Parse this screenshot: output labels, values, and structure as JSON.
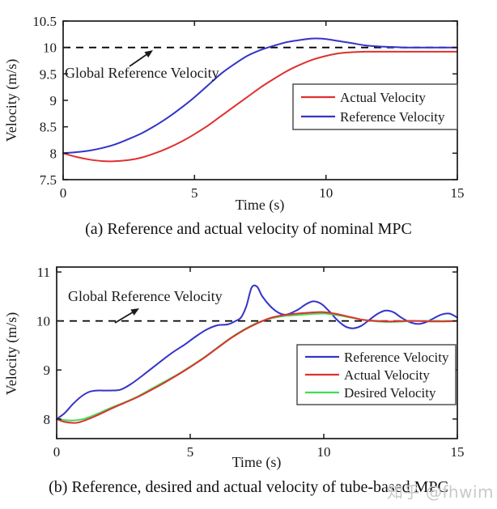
{
  "figure": {
    "watermark": "知乎 @fhwim"
  },
  "colors": {
    "actual": "#e03030",
    "reference": "#3434c8",
    "desired": "#3fdd55",
    "axis": "#1a1a1a",
    "dashed_reference": "#000000",
    "watermark": "#c9c9c9"
  },
  "chart_data": [
    {
      "type": "line",
      "caption": "(a) Reference and actual velocity of nominal MPC",
      "xlabel": "Time (s)",
      "ylabel": "Velocity (m/s)",
      "xlim": [
        0,
        15
      ],
      "ylim": [
        7.5,
        10.5
      ],
      "xticks": [
        0,
        5,
        10,
        15
      ],
      "xtick_labels": [
        "0",
        "5",
        "10",
        "15"
      ],
      "yticks": [
        7.5,
        8,
        8.5,
        9,
        9.5,
        10,
        10.5
      ],
      "ytick_labels": [
        "7.5",
        "8",
        "8.5",
        "9",
        "9.5",
        "10",
        "10.5"
      ],
      "grid": false,
      "reference_line_y": 10,
      "annotation": {
        "text": "Global Reference Velocity"
      },
      "legend_position": "middle-right",
      "legend": [
        {
          "label": "Actual Velocity",
          "color": "#e03030"
        },
        {
          "label": "Reference Velocity",
          "color": "#3434c8"
        }
      ],
      "series": [
        {
          "name": "Actual Velocity",
          "color": "#e03030",
          "x": [
            0,
            0.5,
            1,
            1.5,
            2,
            2.5,
            3,
            3.5,
            4,
            4.5,
            5,
            5.5,
            6,
            6.5,
            7,
            7.5,
            8,
            8.5,
            9,
            9.5,
            10,
            10.5,
            11,
            11.5,
            12,
            12.5,
            13,
            14,
            15
          ],
          "y": [
            8.0,
            7.93,
            7.88,
            7.85,
            7.85,
            7.87,
            7.92,
            8.0,
            8.1,
            8.22,
            8.36,
            8.52,
            8.7,
            8.88,
            9.06,
            9.24,
            9.4,
            9.55,
            9.67,
            9.77,
            9.84,
            9.89,
            9.91,
            9.92,
            9.92,
            9.92,
            9.92,
            9.92,
            9.92
          ]
        },
        {
          "name": "Reference Velocity",
          "color": "#3434c8",
          "x": [
            0,
            0.5,
            1,
            1.5,
            2,
            2.5,
            3,
            3.5,
            4,
            4.5,
            5,
            5.5,
            6,
            6.5,
            7,
            7.5,
            8,
            8.5,
            9,
            9.5,
            10,
            10.5,
            11,
            11.5,
            12,
            12.5,
            13,
            14,
            15
          ],
          "y": [
            8.0,
            8.02,
            8.05,
            8.1,
            8.17,
            8.27,
            8.38,
            8.52,
            8.68,
            8.86,
            9.06,
            9.28,
            9.5,
            9.68,
            9.84,
            9.95,
            10.03,
            10.1,
            10.14,
            10.17,
            10.16,
            10.12,
            10.08,
            10.04,
            10.02,
            10.01,
            10.0,
            10.0,
            10.0
          ]
        }
      ]
    },
    {
      "type": "line",
      "caption": "(b) Reference, desired and actual velocity of tube-based MPC",
      "xlabel": "Time (s)",
      "ylabel": "Velocity (m/s)",
      "xlim": [
        0,
        15
      ],
      "ylim": [
        7.6,
        11.1
      ],
      "xticks": [
        0,
        5,
        10,
        15
      ],
      "xtick_labels": [
        "0",
        "5",
        "10",
        "15"
      ],
      "yticks": [
        8,
        9,
        10,
        11
      ],
      "ytick_labels": [
        "8",
        "9",
        "10",
        "11"
      ],
      "grid": false,
      "reference_line_y": 10,
      "annotation": {
        "text": "Global Reference Velocity"
      },
      "legend_position": "middle-right",
      "legend": [
        {
          "label": "Reference Velocity",
          "color": "#3434c8"
        },
        {
          "label": "Actual Velocity",
          "color": "#e03030"
        },
        {
          "label": "Desired Velocity",
          "color": "#3fdd55"
        }
      ],
      "series": [
        {
          "name": "Reference Velocity",
          "color": "#3434c8",
          "x": [
            0,
            0.3,
            0.6,
            0.9,
            1.2,
            1.5,
            2,
            2.4,
            2.8,
            3.2,
            3.6,
            4,
            4.4,
            4.8,
            5.2,
            5.6,
            6,
            6.4,
            6.7,
            6.9,
            7.1,
            7.3,
            7.5,
            7.7,
            8,
            8.3,
            8.6,
            9,
            9.3,
            9.6,
            9.9,
            10.2,
            10.5,
            10.8,
            11.1,
            11.4,
            11.7,
            12,
            12.3,
            12.6,
            12.9,
            13.2,
            13.5,
            13.8,
            14.1,
            14.4,
            14.7,
            15
          ],
          "y": [
            8.0,
            8.12,
            8.3,
            8.45,
            8.55,
            8.58,
            8.58,
            8.6,
            8.72,
            8.88,
            9.05,
            9.22,
            9.38,
            9.52,
            9.68,
            9.82,
            9.91,
            9.93,
            10.0,
            10.07,
            10.3,
            10.68,
            10.7,
            10.5,
            10.3,
            10.17,
            10.13,
            10.22,
            10.33,
            10.4,
            10.35,
            10.2,
            10.02,
            9.89,
            9.85,
            9.9,
            10.02,
            10.14,
            10.21,
            10.18,
            10.07,
            9.98,
            9.94,
            9.97,
            10.05,
            10.13,
            10.15,
            10.07
          ]
        },
        {
          "name": "Desired Velocity",
          "color": "#3fdd55",
          "x": [
            0,
            0.5,
            1,
            1.5,
            2,
            2.5,
            3,
            3.5,
            4,
            4.5,
            5,
            5.5,
            6,
            6.5,
            7,
            7.5,
            8,
            8.5,
            9,
            9.5,
            10,
            10.5,
            11,
            11.5,
            12,
            12.5,
            13,
            13.5,
            14,
            14.5,
            15
          ],
          "y": [
            8.0,
            7.97,
            8.0,
            8.1,
            8.22,
            8.33,
            8.45,
            8.6,
            8.75,
            8.9,
            9.07,
            9.25,
            9.45,
            9.65,
            9.82,
            9.96,
            10.05,
            10.1,
            10.12,
            10.14,
            10.15,
            10.12,
            10.07,
            10.02,
            9.99,
            9.98,
            9.99,
            10.0,
            10.0,
            10.0,
            10.0
          ]
        },
        {
          "name": "Actual Velocity",
          "color": "#e03030",
          "x": [
            0,
            0.3,
            0.7,
            1,
            1.5,
            2,
            2.5,
            3,
            3.5,
            4,
            4.5,
            5,
            5.5,
            6,
            6.5,
            7,
            7.5,
            8,
            8.5,
            9,
            9.5,
            10,
            10.5,
            11,
            11.5,
            12,
            12.5,
            13,
            13.5,
            14,
            14.5,
            15
          ],
          "y": [
            8.0,
            7.94,
            7.92,
            7.96,
            8.07,
            8.2,
            8.32,
            8.44,
            8.58,
            8.73,
            8.89,
            9.06,
            9.24,
            9.44,
            9.64,
            9.81,
            9.95,
            10.06,
            10.12,
            10.15,
            10.17,
            10.18,
            10.14,
            10.08,
            10.02,
            10.0,
            9.99,
            10.0,
            10.0,
            9.99,
            9.99,
            10.0
          ]
        }
      ]
    }
  ]
}
